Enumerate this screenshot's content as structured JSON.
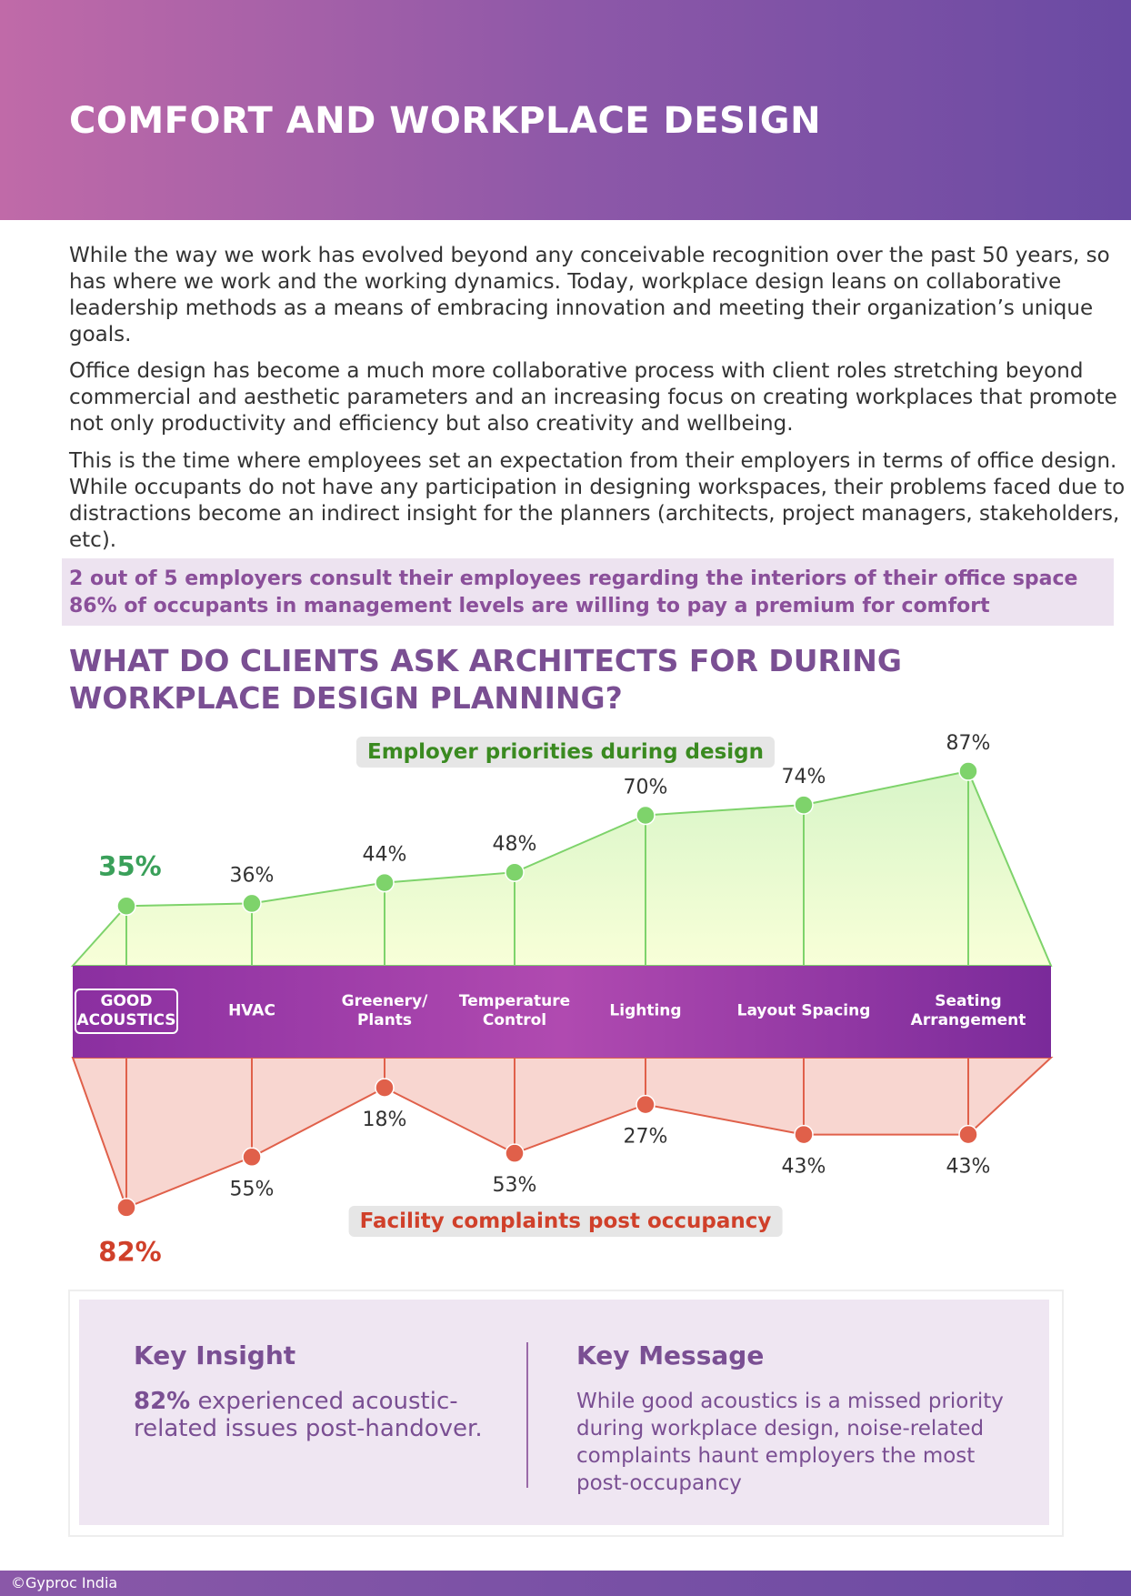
{
  "header": {
    "title": "COMFORT AND WORKPLACE DESIGN"
  },
  "paragraphs": [
    "While the way we work has evolved beyond any conceivable recognition over the past 50 years, so has where we work and the working dynamics. Today, workplace design leans on collaborative leadership methods as a means of embracing innovation and meeting their organization’s unique goals.",
    "Office design has become a much more collaborative process with client roles stretching beyond commercial and aesthetic parameters and an increasing focus on creating workplaces that promote not only productivity and efficiency but also creativity and wellbeing.",
    "This is the time where employees set an expectation from their employers in terms of office design. While occupants do not have any participation in designing workspaces, their problems faced due to distractions become an indirect insight for the planners (architects, project managers, stakeholders, etc)."
  ],
  "highlights": [
    "2 out of 5 employers consult their employees regarding the interiors of their office space",
    "86% of occupants in management levels are willing to pay a premium for comfort"
  ],
  "section_title": "WHAT DO CLIENTS ASK ARCHITECTS FOR DURING WORKPLACE DESIGN PLANNING?",
  "chart_data": {
    "type": "line",
    "categories": [
      "GOOD ACOUSTICS",
      "HVAC",
      "Greenery/ Plants",
      "Temperature Control",
      "Lighting",
      "Layout Spacing",
      "Seating Arrangement"
    ],
    "series": [
      {
        "name": "Employer priorities during design",
        "color": "#7ed36b",
        "values": [
          35,
          36,
          44,
          48,
          70,
          74,
          87
        ],
        "value_labels": [
          "35%",
          "36%",
          "44%",
          "48%",
          "70%",
          "74%",
          "87%"
        ]
      },
      {
        "name": "Facility complaints post occupancy",
        "color": "#e0604a",
        "values": [
          82,
          55,
          18,
          53,
          27,
          43,
          43
        ],
        "value_labels": [
          "82%",
          "55%",
          "18%",
          "53%",
          "27%",
          "43%",
          "43%"
        ]
      }
    ]
  },
  "key_insight": {
    "heading": "Key Insight",
    "highlight": "82%",
    "text": "experienced acoustic-related issues post-handover."
  },
  "key_message": {
    "heading": "Key Message",
    "text": "While good acoustics is a missed priority during workplace design, noise-related complaints haunt employers the most post-occupancy"
  },
  "footer": "©Gyproc India"
}
